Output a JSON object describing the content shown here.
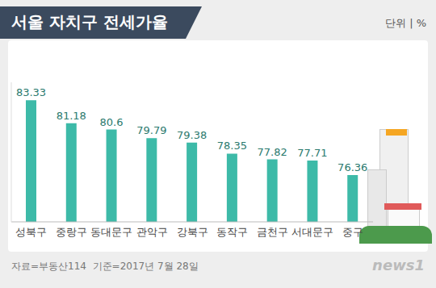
{
  "chart_data": {
    "type": "bar",
    "title": "서울 자치구 전세가율",
    "unit_label": "단위 | %",
    "source": "자료=부동산114",
    "note": "기준=2017년 7월 28일",
    "watermark": "news1",
    "categories": [
      "성북구",
      "중랑구",
      "동대문구",
      "관악구",
      "강북구",
      "동작구",
      "금천구",
      "서대문구",
      "중구"
    ],
    "values": [
      83.33,
      81.18,
      80.6,
      79.79,
      79.38,
      78.35,
      77.82,
      77.71,
      76.36
    ],
    "color": "#3dbaa8",
    "ylim": [
      72,
      85
    ],
    "yticks": [
      72,
      85
    ],
    "grid": false,
    "data_labels": true,
    "tick_labels": "x"
  }
}
